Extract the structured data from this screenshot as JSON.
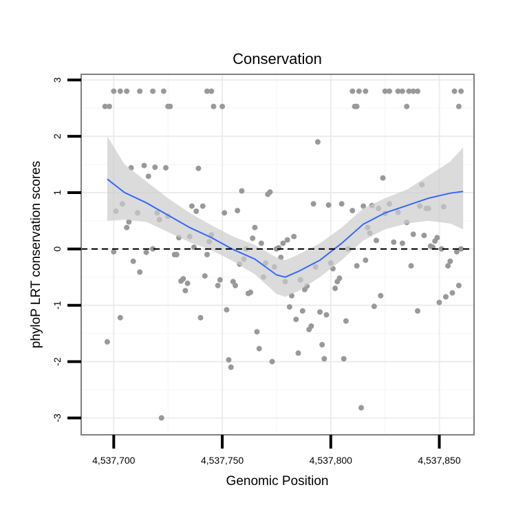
{
  "chart_data": {
    "type": "scatter",
    "title": "Conservation",
    "xlabel": "Genomic Position",
    "ylabel": "phyloP LRT conservation scores",
    "xlim": [
      4537685,
      4537866
    ],
    "ylim": [
      -3.3,
      3.1
    ],
    "grid": true,
    "legend": "none",
    "x_ticks": [
      {
        "value": 4537700,
        "label": "4,537,700"
      },
      {
        "value": 4537750,
        "label": "4,537,750"
      },
      {
        "value": 4537800,
        "label": "4,537,800"
      },
      {
        "value": 4537850,
        "label": "4,537,850"
      }
    ],
    "y_ticks": [
      {
        "value": 3,
        "label": "3"
      },
      {
        "value": 2,
        "label": "2"
      },
      {
        "value": 1,
        "label": "1"
      },
      {
        "value": 0,
        "label": "0"
      },
      {
        "value": -1,
        "label": "-1"
      },
      {
        "value": -2,
        "label": "-2"
      },
      {
        "value": -3,
        "label": "-3"
      }
    ],
    "reference_line": {
      "y": 0,
      "style": "dashed",
      "color": "#000000"
    },
    "point_color": "#999999",
    "points": [
      [
        4537696,
        2.53
      ],
      [
        4537698,
        2.53
      ],
      [
        4537700,
        2.8
      ],
      [
        4537703,
        2.8
      ],
      [
        4537706,
        2.8
      ],
      [
        4537712,
        2.8
      ],
      [
        4537718,
        2.8
      ],
      [
        4537723,
        2.8
      ],
      [
        4537725,
        2.53
      ],
      [
        4537726,
        2.53
      ],
      [
        4537743,
        2.8
      ],
      [
        4537745,
        2.8
      ],
      [
        4537746,
        2.53
      ],
      [
        4537750,
        2.53
      ],
      [
        4537810,
        2.8
      ],
      [
        4537811,
        2.53
      ],
      [
        4537812,
        2.53
      ],
      [
        4537813,
        2.8
      ],
      [
        4537816,
        2.8
      ],
      [
        4537825,
        2.8
      ],
      [
        4537827,
        2.8
      ],
      [
        4537831,
        2.8
      ],
      [
        4537833,
        2.8
      ],
      [
        4537836,
        2.8
      ],
      [
        4537838,
        2.8
      ],
      [
        4537840,
        2.8
      ],
      [
        4537835,
        2.53
      ],
      [
        4537857,
        2.8
      ],
      [
        4537860,
        2.8
      ],
      [
        4537859,
        2.53
      ],
      [
        4537697,
        -1.65
      ],
      [
        4537700,
        -0.05
      ],
      [
        4537701,
        0.67
      ],
      [
        4537703,
        -1.22
      ],
      [
        4537704,
        0.8
      ],
      [
        4537706,
        0.38
      ],
      [
        4537707,
        0.48
      ],
      [
        4537708,
        1.44
      ],
      [
        4537709,
        -0.22
      ],
      [
        4537711,
        0.64
      ],
      [
        4537712,
        -0.41
      ],
      [
        4537714,
        1.48
      ],
      [
        4537715,
        -0.06
      ],
      [
        4537716,
        1.29
      ],
      [
        4537718,
        0.0
      ],
      [
        4537719,
        1.45
      ],
      [
        4537720,
        0.64
      ],
      [
        4537721,
        0.52
      ],
      [
        4537722,
        -3.0
      ],
      [
        4537724,
        1.44
      ],
      [
        4537725,
        0.58
      ],
      [
        4537728,
        -0.1
      ],
      [
        4537729,
        -0.1
      ],
      [
        4537730,
        0.2
      ],
      [
        4537731,
        -0.57
      ],
      [
        4537732,
        -0.53
      ],
      [
        4537733,
        -0.74
      ],
      [
        4537734,
        -0.61
      ],
      [
        4537735,
        0.22
      ],
      [
        4537736,
        0.76
      ],
      [
        4537737,
        0.03
      ],
      [
        4537738,
        0.67
      ],
      [
        4537739,
        1.43
      ],
      [
        4537740,
        -1.22
      ],
      [
        4537741,
        0.76
      ],
      [
        4537742,
        -0.48
      ],
      [
        4537743,
        -0.1
      ],
      [
        4537744,
        0.13
      ],
      [
        4537745,
        0.25
      ],
      [
        4537748,
        -0.65
      ],
      [
        4537749,
        -0.55
      ],
      [
        4537751,
        0.64
      ],
      [
        4537752,
        -1.08
      ],
      [
        4537753,
        -1.97
      ],
      [
        4537754,
        -2.1
      ],
      [
        4537755,
        -0.58
      ],
      [
        4537756,
        -0.65
      ],
      [
        4537757,
        0.68
      ],
      [
        4537758,
        -0.27
      ],
      [
        4537759,
        1.03
      ],
      [
        4537760,
        -0.18
      ],
      [
        4537761,
        0.0
      ],
      [
        4537762,
        -0.79
      ],
      [
        4537763,
        -0.77
      ],
      [
        4537764,
        0.19
      ],
      [
        4537765,
        0.38
      ],
      [
        4537766,
        -1.47
      ],
      [
        4537767,
        -1.77
      ],
      [
        4537768,
        0.1
      ],
      [
        4537769,
        -0.5
      ],
      [
        4537770,
        -0.25
      ],
      [
        4537771,
        0.97
      ],
      [
        4537772,
        1.01
      ],
      [
        4537773,
        -2.0
      ],
      [
        4537774,
        -0.32
      ],
      [
        4537775,
        0.0
      ],
      [
        4537776,
        0.02
      ],
      [
        4537777,
        -0.15
      ],
      [
        4537778,
        0.1
      ],
      [
        4537779,
        -0.58
      ],
      [
        4537780,
        0.16
      ],
      [
        4537781,
        -1.03
      ],
      [
        4537782,
        -0.83
      ],
      [
        4537783,
        0.22
      ],
      [
        4537784,
        -1.25
      ],
      [
        4537785,
        -1.85
      ],
      [
        4537786,
        -0.55
      ],
      [
        4537787,
        -1.1
      ],
      [
        4537788,
        -0.72
      ],
      [
        4537789,
        -0.66
      ],
      [
        4537790,
        -1.43
      ],
      [
        4537791,
        -1.37
      ],
      [
        4537792,
        0.8
      ],
      [
        4537793,
        -0.32
      ],
      [
        4537794,
        1.9
      ],
      [
        4537795,
        -1.12
      ],
      [
        4537796,
        -1.7
      ],
      [
        4537797,
        -1.95
      ],
      [
        4537798,
        -1.17
      ],
      [
        4537799,
        0.78
      ],
      [
        4537800,
        -0.25
      ],
      [
        4537801,
        -0.35
      ],
      [
        4537802,
        -0.7
      ],
      [
        4537803,
        -0.58
      ],
      [
        4537804,
        -0.52
      ],
      [
        4537805,
        0.8
      ],
      [
        4537806,
        -1.95
      ],
      [
        4537807,
        -1.28
      ],
      [
        4537808,
        0.0
      ],
      [
        4537810,
        0.68
      ],
      [
        4537812,
        -0.3
      ],
      [
        4537814,
        -2.82
      ],
      [
        4537815,
        0.76
      ],
      [
        4537816,
        -0.2
      ],
      [
        4537817,
        0.38
      ],
      [
        4537818,
        0.28
      ],
      [
        4537819,
        0.77
      ],
      [
        4537820,
        -1.02
      ],
      [
        4537821,
        0.15
      ],
      [
        4537822,
        0.72
      ],
      [
        4537823,
        -0.83
      ],
      [
        4537824,
        1.26
      ],
      [
        4537825,
        0.63
      ],
      [
        4537827,
        0.8
      ],
      [
        4537829,
        0.12
      ],
      [
        4537831,
        0.65
      ],
      [
        4537833,
        0.1
      ],
      [
        4537835,
        0.47
      ],
      [
        4537837,
        -0.3
      ],
      [
        4537838,
        0.26
      ],
      [
        4537840,
        -1.1
      ],
      [
        4537841,
        0.76
      ],
      [
        4537842,
        1.14
      ],
      [
        4537843,
        0.24
      ],
      [
        4537844,
        0.72
      ],
      [
        4537845,
        0.72
      ],
      [
        4537846,
        0.05
      ],
      [
        4537847,
        0.03
      ],
      [
        4537848,
        0.14
      ],
      [
        4537849,
        0.2
      ],
      [
        4537850,
        -0.95
      ],
      [
        4537851,
        0.0
      ],
      [
        4537852,
        0.75
      ],
      [
        4537853,
        -0.85
      ],
      [
        4537854,
        -0.3
      ],
      [
        4537855,
        -0.22
      ],
      [
        4537856,
        -0.78
      ],
      [
        4537858,
        -0.05
      ],
      [
        4537859,
        -0.65
      ],
      [
        4537860,
        0.0
      ]
    ],
    "smooth": {
      "method": "loess",
      "color": "#3366ff",
      "band_color": "#cccccc",
      "x": [
        4537697,
        4537705,
        4537715,
        4537725,
        4537735,
        4537745,
        4537755,
        4537765,
        4537775,
        4537779,
        4537785,
        4537795,
        4537805,
        4537815,
        4537825,
        4537835,
        4537845,
        4537855,
        4537861
      ],
      "fit": [
        1.24,
        1.0,
        0.82,
        0.6,
        0.38,
        0.2,
        -0.01,
        -0.18,
        -0.46,
        -0.5,
        -0.4,
        -0.2,
        0.1,
        0.44,
        0.64,
        0.77,
        0.9,
        0.99,
        1.02
      ],
      "lower": [
        0.5,
        0.52,
        0.48,
        0.3,
        0.12,
        -0.02,
        -0.22,
        -0.45,
        -0.8,
        -0.85,
        -0.75,
        -0.5,
        -0.2,
        0.15,
        0.35,
        0.45,
        0.5,
        0.45,
        0.35
      ],
      "upper": [
        2.0,
        1.5,
        1.2,
        0.9,
        0.64,
        0.42,
        0.22,
        0.07,
        -0.15,
        -0.2,
        -0.1,
        0.1,
        0.38,
        0.72,
        0.9,
        1.05,
        1.3,
        1.55,
        1.8
      ]
    }
  }
}
